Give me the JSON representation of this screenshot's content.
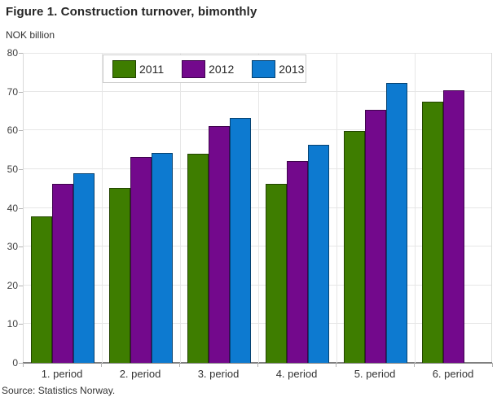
{
  "figure": {
    "title": "Figure 1. Construction turnover, bimonthly",
    "unit_label": "NOK billion",
    "source": "Source: Statistics Norway."
  },
  "colors": {
    "series_2011": "#3e7d00",
    "series_2012": "#73098c",
    "series_2013": "#0d7ad0",
    "gridline": "#e6e6e6",
    "axis_line": "#808080",
    "tick_text": "#404040"
  },
  "chart_data": {
    "type": "bar",
    "title": "Figure 1. Construction turnover, bimonthly",
    "ylabel": "NOK billion",
    "xlabel": "",
    "categories": [
      "1. period",
      "2. period",
      "3. period",
      "4. period",
      "5. period",
      "6. period"
    ],
    "series": [
      {
        "name": "2011",
        "color": "#3e7d00",
        "values": [
          37.9,
          45.1,
          54.0,
          46.1,
          59.9,
          67.5
        ]
      },
      {
        "name": "2012",
        "color": "#73098c",
        "values": [
          46.2,
          53.2,
          61.2,
          52.1,
          65.2,
          70.4
        ]
      },
      {
        "name": "2013",
        "color": "#0d7ad0",
        "values": [
          49.0,
          54.2,
          63.3,
          56.2,
          72.3,
          null
        ]
      }
    ],
    "ylim": [
      0,
      80
    ],
    "ytick_step": 10,
    "grid": true,
    "legend_position": "top-left-inside"
  }
}
